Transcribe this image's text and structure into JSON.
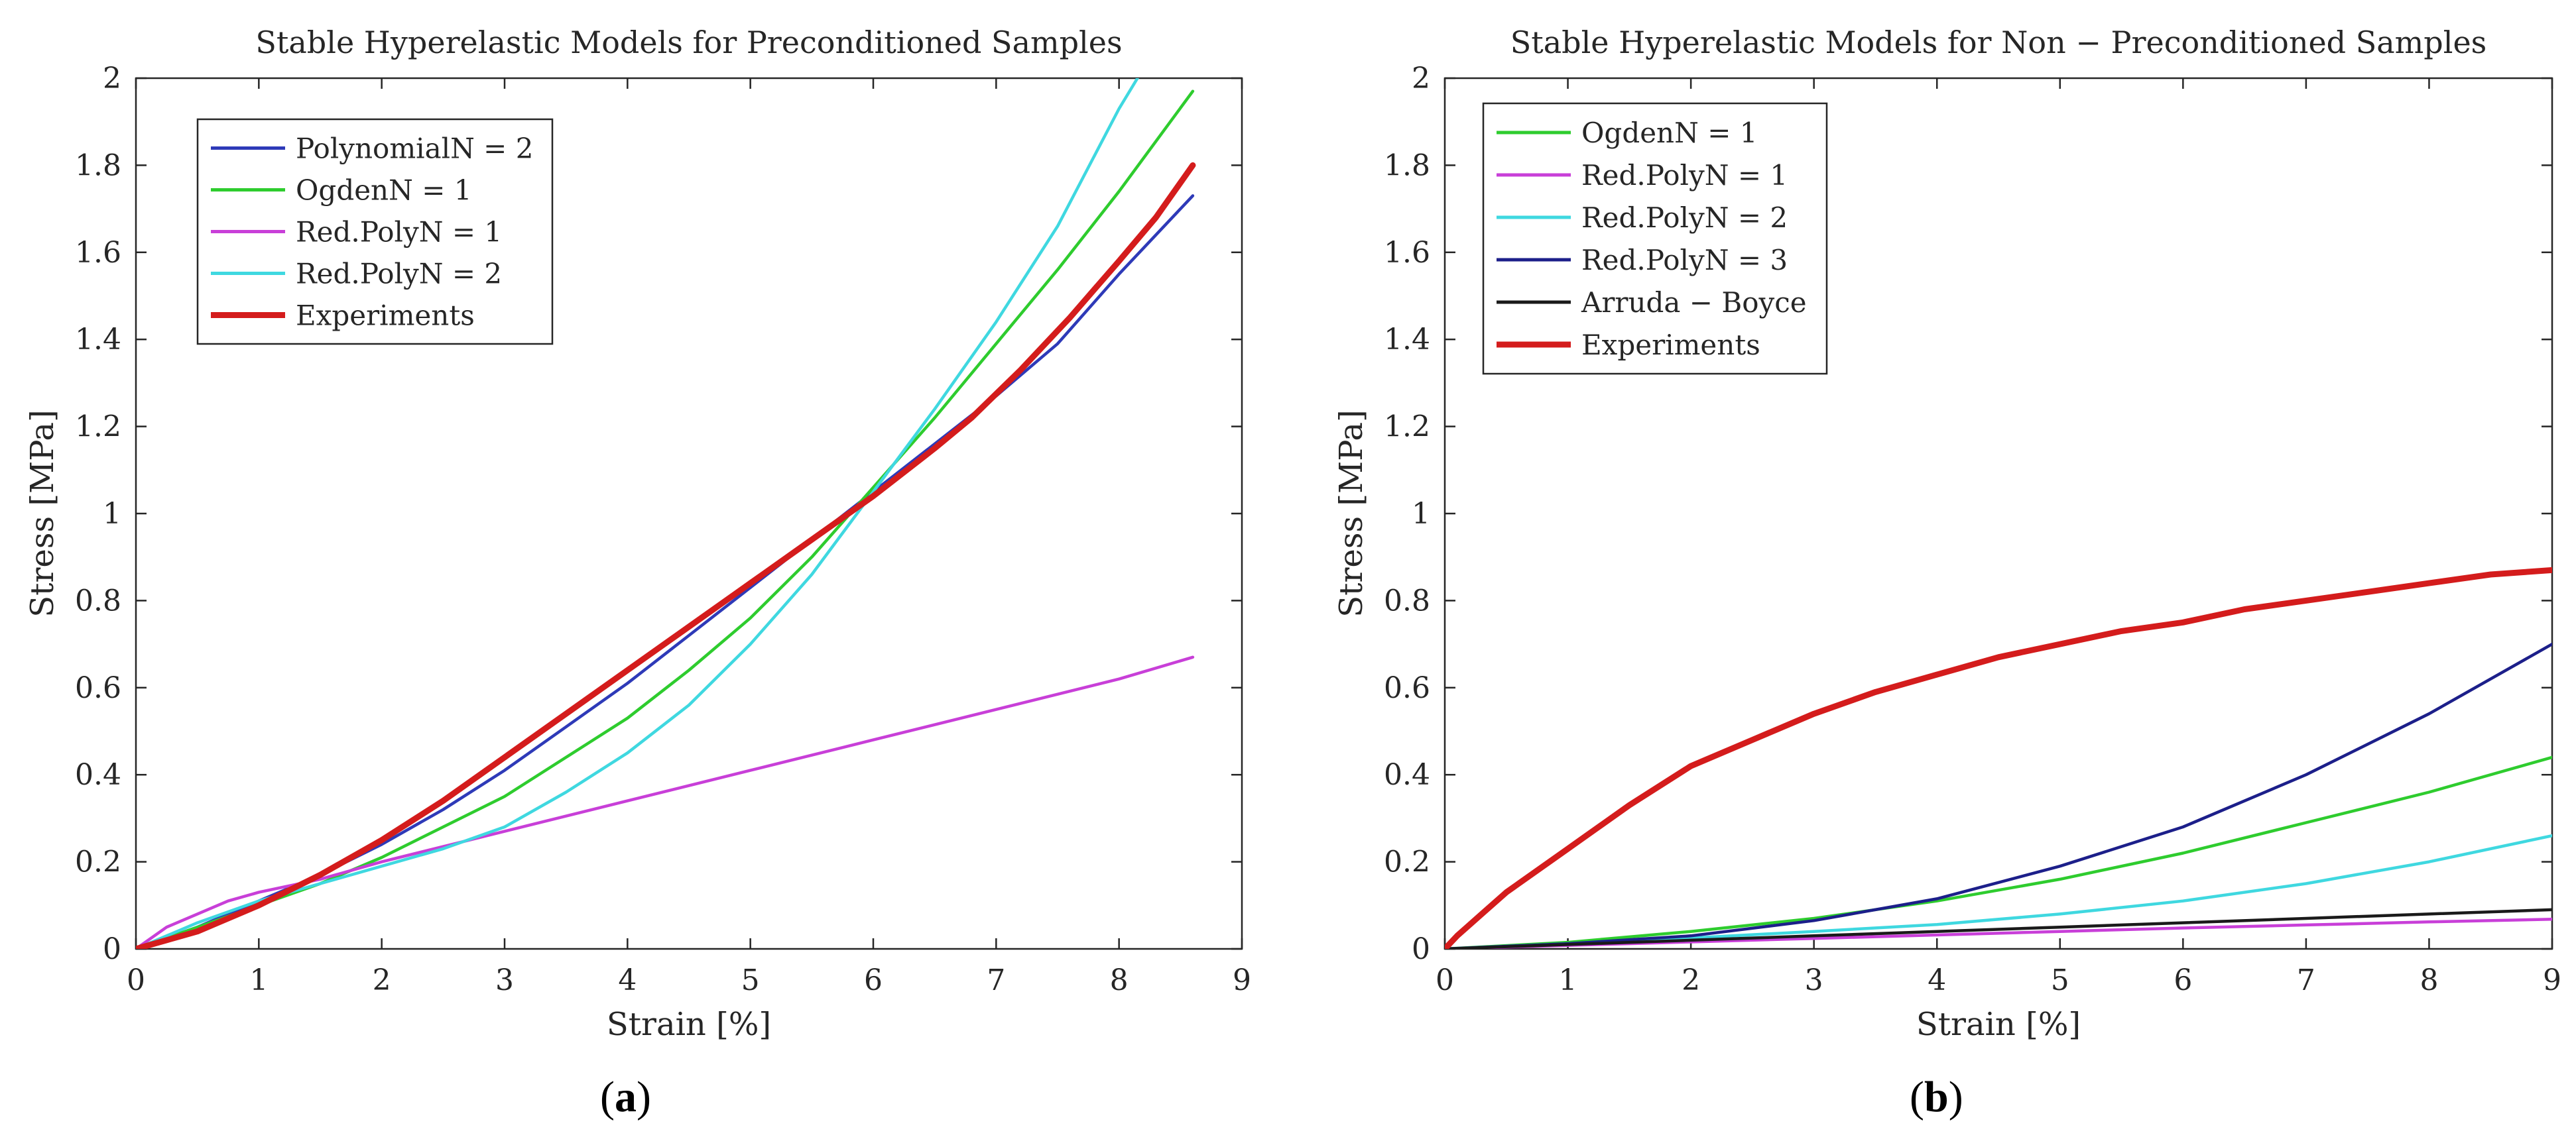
{
  "figure_labels": {
    "a": {
      "open": "(",
      "letter": "a",
      "close": ")"
    },
    "b": {
      "open": "(",
      "letter": "b",
      "close": ")"
    }
  },
  "chart_data": [
    {
      "id": "a",
      "type": "line",
      "title": "Stable Hyperelastic Models for Preconditioned Samples",
      "xlabel": "Strain [%]",
      "ylabel": "Stress [MPa]",
      "xlim": [
        0,
        9
      ],
      "ylim": [
        0,
        2
      ],
      "xticks": [
        0,
        1,
        2,
        3,
        4,
        5,
        6,
        7,
        8,
        9
      ],
      "yticks": [
        0,
        0.2,
        0.4,
        0.6,
        0.8,
        1,
        1.2,
        1.4,
        1.6,
        1.8,
        2
      ],
      "ytick_labels": [
        "0",
        "0.2",
        "0.4",
        "0.6",
        "0.8",
        "1",
        "1.2",
        "1.4",
        "1.6",
        "1.8",
        "2"
      ],
      "legend_position": "top-left",
      "series": [
        {
          "name": "PolynomialN = 2",
          "color": "#2e3ab8",
          "width": 1,
          "x": [
            0,
            0.5,
            1,
            1.5,
            2,
            2.5,
            3,
            3.5,
            4,
            4.5,
            5,
            5.5,
            6,
            6.5,
            7,
            7.5,
            8,
            8.6
          ],
          "y": [
            0,
            0.05,
            0.11,
            0.17,
            0.24,
            0.32,
            0.41,
            0.51,
            0.61,
            0.72,
            0.83,
            0.94,
            1.05,
            1.16,
            1.27,
            1.39,
            1.55,
            1.73
          ]
        },
        {
          "name": "OgdenN = 1",
          "color": "#2ecc2e",
          "width": 1,
          "x": [
            0,
            0.5,
            1,
            1.5,
            2,
            2.5,
            3,
            3.5,
            4,
            4.5,
            5,
            5.5,
            6,
            6.5,
            7,
            7.5,
            8,
            8.6
          ],
          "y": [
            0,
            0.05,
            0.1,
            0.15,
            0.21,
            0.28,
            0.35,
            0.44,
            0.53,
            0.64,
            0.76,
            0.9,
            1.06,
            1.22,
            1.39,
            1.56,
            1.74,
            1.97
          ]
        },
        {
          "name": "Red.PolyN = 1",
          "color": "#c83fd8",
          "width": 1,
          "x": [
            0,
            0.25,
            0.5,
            0.75,
            1,
            1.5,
            2,
            3,
            4,
            5,
            6,
            7,
            8,
            8.6
          ],
          "y": [
            0,
            0.05,
            0.08,
            0.11,
            0.13,
            0.16,
            0.2,
            0.27,
            0.34,
            0.41,
            0.48,
            0.55,
            0.62,
            0.67
          ]
        },
        {
          "name": "Red.PolyN = 2",
          "color": "#3fd8e0",
          "width": 1,
          "x": [
            0,
            0.5,
            1,
            1.5,
            2,
            2.5,
            3,
            3.5,
            4,
            4.5,
            5,
            5.5,
            6,
            6.5,
            7,
            7.5,
            8,
            8.15
          ],
          "y": [
            0,
            0.06,
            0.11,
            0.15,
            0.19,
            0.23,
            0.28,
            0.36,
            0.45,
            0.56,
            0.7,
            0.86,
            1.05,
            1.24,
            1.44,
            1.66,
            1.93,
            2.0
          ]
        },
        {
          "name": "Experiments",
          "color": "#d41c1c",
          "width": 2,
          "x": [
            0,
            0.5,
            1,
            1.5,
            2,
            2.5,
            3,
            3.5,
            4,
            4.5,
            5,
            5.5,
            6,
            6.5,
            6.8,
            7.2,
            7.6,
            8,
            8.3,
            8.6
          ],
          "y": [
            0,
            0.04,
            0.1,
            0.17,
            0.25,
            0.34,
            0.44,
            0.54,
            0.64,
            0.74,
            0.84,
            0.94,
            1.04,
            1.15,
            1.22,
            1.33,
            1.45,
            1.58,
            1.68,
            1.8
          ]
        }
      ]
    },
    {
      "id": "b",
      "type": "line",
      "title": "Stable Hyperelastic Models for Non − Preconditioned Samples",
      "xlabel": "Strain [%]",
      "ylabel": "Stress [MPa]",
      "xlim": [
        0,
        9
      ],
      "ylim": [
        0,
        2
      ],
      "xticks": [
        0,
        1,
        2,
        3,
        4,
        5,
        6,
        7,
        8,
        9
      ],
      "yticks": [
        0,
        0.2,
        0.4,
        0.6,
        0.8,
        1,
        1.2,
        1.4,
        1.6,
        1.8,
        2
      ],
      "ytick_labels": [
        "0",
        "0.2",
        "0.4",
        "0.6",
        "0.8",
        "1",
        "1.2",
        "1.4",
        "1.6",
        "1.8",
        "2"
      ],
      "legend_position": "top-left",
      "series": [
        {
          "name": "OgdenN = 1",
          "color": "#2ecc2e",
          "width": 1,
          "x": [
            0,
            1,
            2,
            3,
            4,
            5,
            6,
            7,
            8,
            9
          ],
          "y": [
            0,
            0.015,
            0.04,
            0.07,
            0.11,
            0.16,
            0.22,
            0.29,
            0.36,
            0.44
          ]
        },
        {
          "name": "Red.PolyN = 1",
          "color": "#c83fd8",
          "width": 1,
          "x": [
            0,
            1,
            2,
            3,
            4,
            5,
            6,
            7,
            8,
            9
          ],
          "y": [
            0,
            0.008,
            0.016,
            0.024,
            0.032,
            0.04,
            0.048,
            0.055,
            0.062,
            0.068
          ]
        },
        {
          "name": "Red.PolyN = 2",
          "color": "#3fd8e0",
          "width": 1,
          "x": [
            0,
            1,
            2,
            3,
            4,
            5,
            6,
            7,
            8,
            9
          ],
          "y": [
            0,
            0.012,
            0.025,
            0.04,
            0.056,
            0.08,
            0.11,
            0.15,
            0.2,
            0.26
          ]
        },
        {
          "name": "Red.PolyN = 3",
          "color": "#1c1f8a",
          "width": 1,
          "x": [
            0,
            1,
            2,
            3,
            4,
            5,
            6,
            7,
            8,
            9
          ],
          "y": [
            0,
            0.012,
            0.03,
            0.065,
            0.115,
            0.19,
            0.28,
            0.4,
            0.54,
            0.7
          ]
        },
        {
          "name": "Arruda − Boyce",
          "color": "#1a1a1a",
          "width": 1,
          "x": [
            0,
            1,
            2,
            3,
            4,
            5,
            6,
            7,
            8,
            9
          ],
          "y": [
            0,
            0.01,
            0.02,
            0.03,
            0.04,
            0.05,
            0.06,
            0.07,
            0.08,
            0.09
          ]
        },
        {
          "name": "Experiments",
          "color": "#d41c1c",
          "width": 2,
          "x": [
            0,
            0.1,
            0.3,
            0.5,
            1,
            1.5,
            2,
            2.5,
            3,
            3.5,
            4,
            4.5,
            5,
            5.5,
            6,
            6.5,
            7,
            7.5,
            8,
            8.5,
            9
          ],
          "y": [
            0,
            0.03,
            0.08,
            0.13,
            0.23,
            0.33,
            0.42,
            0.48,
            0.54,
            0.59,
            0.63,
            0.67,
            0.7,
            0.73,
            0.75,
            0.78,
            0.8,
            0.82,
            0.84,
            0.86,
            0.87
          ]
        }
      ]
    }
  ]
}
